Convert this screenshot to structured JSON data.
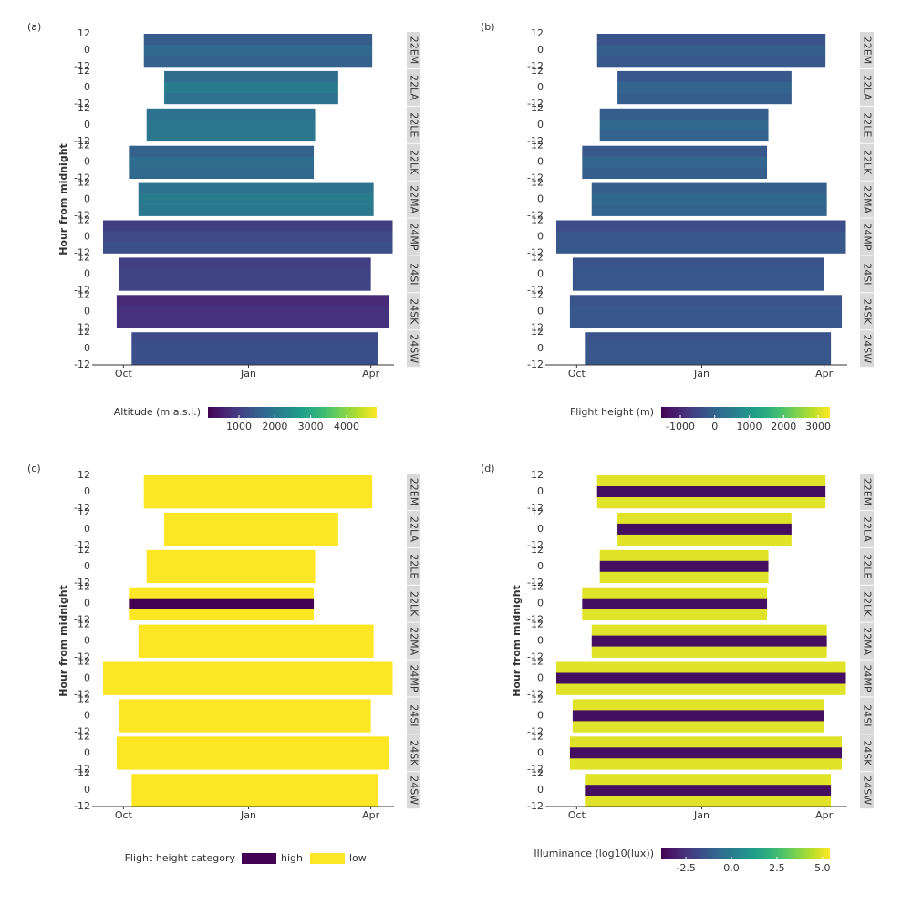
{
  "chart_data": [
    {
      "type": "heatmap",
      "panel_label": "(a)",
      "ylabel": "Hour from midnight",
      "xlim": [
        -15,
        199
      ],
      "xticks": [
        {
          "value": 0,
          "label": "Oct"
        },
        {
          "value": 92,
          "label": "Jan"
        },
        {
          "value": 182,
          "label": "Apr"
        }
      ],
      "ylim": [
        -12,
        12
      ],
      "yticks": [
        12,
        0,
        -12
      ],
      "colormap": "viridis",
      "facets": [
        {
          "name": "22EM",
          "range": [
            15,
            183
          ],
          "values": [
            1500,
            1700,
            1600
          ]
        },
        {
          "name": "22LA",
          "range": [
            30,
            158
          ],
          "values": [
            1800,
            2100,
            1900
          ]
        },
        {
          "name": "22LE",
          "range": [
            17,
            141
          ],
          "values": [
            1900,
            2000,
            2000
          ]
        },
        {
          "name": "22LK",
          "range": [
            4,
            140
          ],
          "values": [
            1600,
            1800,
            1700
          ]
        },
        {
          "name": "22MA",
          "range": [
            11,
            184
          ],
          "values": [
            1900,
            2100,
            2000
          ]
        },
        {
          "name": "24MP",
          "range": [
            -15,
            198
          ],
          "values": [
            1000,
            1200,
            1300
          ]
        },
        {
          "name": "24SI",
          "range": [
            -3,
            182
          ],
          "values": [
            1000,
            1100,
            1100
          ]
        },
        {
          "name": "24SK",
          "range": [
            -5,
            195
          ],
          "values": [
            700,
            800,
            800
          ]
        },
        {
          "name": "24SW",
          "range": [
            6,
            187
          ],
          "values": [
            1200,
            1300,
            1300
          ]
        }
      ],
      "colorbar": {
        "label": "Altitude (m a.s.l.)",
        "lim": [
          135,
          4840
        ],
        "ticks": [
          1000,
          2000,
          3000,
          4000
        ]
      }
    },
    {
      "type": "heatmap",
      "panel_label": "(b)",
      "xlim": [
        -15,
        199
      ],
      "xticks": [
        {
          "value": 0,
          "label": "Oct"
        },
        {
          "value": 92,
          "label": "Jan"
        },
        {
          "value": 182,
          "label": "Apr"
        }
      ],
      "ylim": [
        -12,
        12
      ],
      "yticks": [
        12,
        0,
        -12
      ],
      "colormap": "viridis",
      "facets": [
        {
          "name": "22EM",
          "range": [
            15,
            183
          ],
          "values": [
            -300,
            -100,
            -200
          ]
        },
        {
          "name": "22LA",
          "range": [
            30,
            158
          ],
          "values": [
            -200,
            0,
            -100
          ]
        },
        {
          "name": "22LE",
          "range": [
            17,
            141
          ],
          "values": [
            -100,
            100,
            0
          ]
        },
        {
          "name": "22LK",
          "range": [
            4,
            140
          ],
          "values": [
            -200,
            0,
            -100
          ]
        },
        {
          "name": "22MA",
          "range": [
            11,
            184
          ],
          "values": [
            -100,
            100,
            0
          ]
        },
        {
          "name": "24MP",
          "range": [
            -15,
            198
          ],
          "values": [
            -400,
            -200,
            -200
          ]
        },
        {
          "name": "24SI",
          "range": [
            -3,
            182
          ],
          "values": [
            -300,
            -200,
            -200
          ]
        },
        {
          "name": "24SK",
          "range": [
            -5,
            195
          ],
          "values": [
            -300,
            -200,
            -200
          ]
        },
        {
          "name": "24SW",
          "range": [
            6,
            187
          ],
          "values": [
            -300,
            -200,
            -200
          ]
        }
      ],
      "colorbar": {
        "label": "Flight height (m)",
        "lim": [
          -1556,
          3344
        ],
        "ticks": [
          -1000,
          0,
          1000,
          2000,
          3000
        ]
      }
    },
    {
      "type": "heatmap",
      "panel_label": "(c)",
      "ylabel": "Hour from midnight",
      "xlim": [
        -15,
        199
      ],
      "xticks": [
        {
          "value": 0,
          "label": "Oct"
        },
        {
          "value": 92,
          "label": "Jan"
        },
        {
          "value": 182,
          "label": "Apr"
        }
      ],
      "ylim": [
        -12,
        12
      ],
      "yticks": [
        12,
        0,
        -12
      ],
      "facets": [
        {
          "name": "22EM",
          "range": [
            15,
            183
          ],
          "values": [
            "low",
            "low",
            "low"
          ]
        },
        {
          "name": "22LA",
          "range": [
            30,
            158
          ],
          "values": [
            "low",
            "low",
            "low"
          ]
        },
        {
          "name": "22LE",
          "range": [
            17,
            141
          ],
          "values": [
            "low",
            "low",
            "low"
          ]
        },
        {
          "name": "22LK",
          "range": [
            4,
            140
          ],
          "values": [
            "low",
            "high",
            "low"
          ]
        },
        {
          "name": "22MA",
          "range": [
            11,
            184
          ],
          "values": [
            "low",
            "low",
            "low"
          ]
        },
        {
          "name": "24MP",
          "range": [
            -15,
            198
          ],
          "values": [
            "low",
            "low",
            "low"
          ]
        },
        {
          "name": "24SI",
          "range": [
            -3,
            182
          ],
          "values": [
            "low",
            "low",
            "low"
          ]
        },
        {
          "name": "24SK",
          "range": [
            -5,
            195
          ],
          "values": [
            "low",
            "low",
            "low"
          ]
        },
        {
          "name": "24SW",
          "range": [
            6,
            187
          ],
          "values": [
            "low",
            "low",
            "low"
          ]
        }
      ],
      "legend": {
        "title": "Flight height category",
        "categories": [
          {
            "name": "high",
            "color": "#440154"
          },
          {
            "name": "low",
            "color": "#fde725"
          }
        ]
      }
    },
    {
      "type": "heatmap",
      "panel_label": "(d)",
      "ylabel": "Hour from midnight",
      "xlim": [
        -15,
        199
      ],
      "xticks": [
        {
          "value": 0,
          "label": "Oct"
        },
        {
          "value": 92,
          "label": "Jan"
        },
        {
          "value": 182,
          "label": "Apr"
        }
      ],
      "ylim": [
        -12,
        12
      ],
      "yticks": [
        12,
        0,
        -12
      ],
      "colormap": "viridis",
      "facets": [
        {
          "name": "22EM",
          "range": [
            15,
            183
          ],
          "values": [
            5.0,
            -3.5,
            5.0
          ]
        },
        {
          "name": "22LA",
          "range": [
            30,
            158
          ],
          "values": [
            5.0,
            -3.5,
            5.0
          ]
        },
        {
          "name": "22LE",
          "range": [
            17,
            141
          ],
          "values": [
            5.0,
            -3.5,
            5.0
          ]
        },
        {
          "name": "22LK",
          "range": [
            4,
            140
          ],
          "values": [
            5.0,
            -3.5,
            5.0
          ]
        },
        {
          "name": "22MA",
          "range": [
            11,
            184
          ],
          "values": [
            5.0,
            -3.5,
            5.0
          ]
        },
        {
          "name": "24MP",
          "range": [
            -15,
            198
          ],
          "values": [
            5.0,
            -3.5,
            5.0
          ]
        },
        {
          "name": "24SI",
          "range": [
            -3,
            182
          ],
          "values": [
            5.0,
            -3.5,
            5.0
          ]
        },
        {
          "name": "24SK",
          "range": [
            -5,
            195
          ],
          "values": [
            5.0,
            -3.5,
            5.0
          ]
        },
        {
          "name": "24SW",
          "range": [
            6,
            187
          ],
          "values": [
            5.0,
            -3.5,
            5.0
          ]
        }
      ],
      "colorbar": {
        "label": "Illuminance (log10(lux))",
        "lim": [
          -3.86,
          5.41
        ],
        "ticks": [
          -2.5,
          {
            "value": 0,
            "label": "0.0"
          },
          2.5,
          {
            "value": 5,
            "label": "5.0"
          }
        ]
      }
    }
  ]
}
